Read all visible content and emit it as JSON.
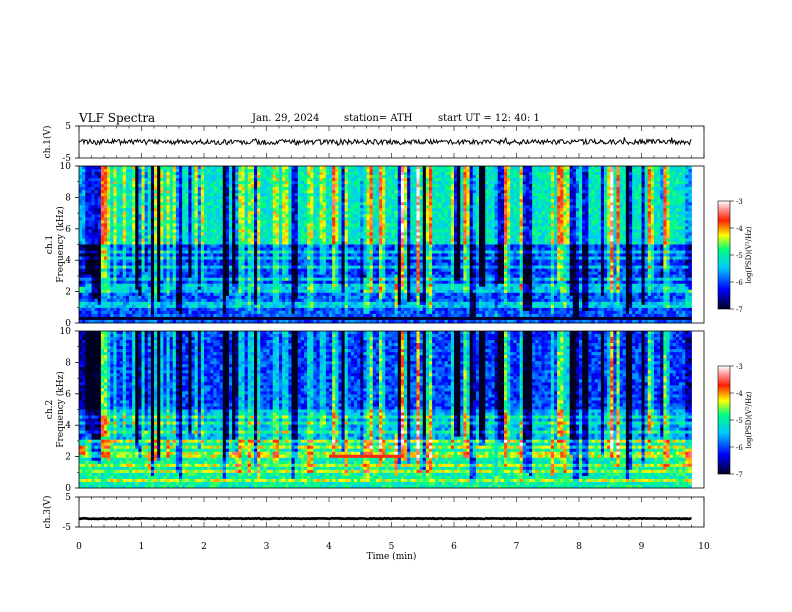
{
  "header": {
    "title": "VLF  Spectra",
    "date": "Jan. 29, 2024",
    "station": "station= ATH",
    "start": "start  UT  =    12: 40: 1"
  },
  "chart_data": [
    {
      "type": "line",
      "name": "ch1-waveform",
      "ylabel": "ch.1(V)",
      "ylim": [
        -5,
        5
      ],
      "yticks": [
        "5",
        "-5"
      ],
      "xlim": [
        0,
        10
      ],
      "series": [
        {
          "mean": 0,
          "amplitude": 1,
          "x_end": 9.8,
          "color": "#000000"
        }
      ]
    },
    {
      "type": "heatmap",
      "name": "ch1-spectrogram",
      "ylabel": "ch.1\nFrequency  (kHz)",
      "ylim": [
        0,
        10
      ],
      "yticks": [
        "0",
        "2",
        "4",
        "6",
        "8",
        "10"
      ],
      "xlim": [
        0,
        9.8
      ],
      "colorbar": {
        "label": "log(PSD)(V²/Hz)",
        "range": [
          -7,
          -3
        ],
        "ticks": [
          "-3",
          "-4",
          "-5",
          "-6",
          "-7"
        ]
      },
      "bands_khz": [
        0.3,
        1.0,
        1.3,
        2.0,
        2.3,
        2.8,
        3.5,
        4.2,
        4.6
      ],
      "gap_khz": [
        0.2,
        0.4
      ]
    },
    {
      "type": "heatmap",
      "name": "ch2-spectrogram",
      "ylabel": "ch.2\nFrequency  (kHz)",
      "ylim": [
        0,
        10
      ],
      "yticks": [
        "0",
        "2",
        "4",
        "6",
        "8",
        "10"
      ],
      "xlim": [
        0,
        9.8
      ],
      "colorbar": {
        "label": "log(PSD)(V²/Hz)",
        "range": [
          -7,
          -3
        ],
        "ticks": [
          "-3",
          "-4",
          "-5",
          "-6",
          "-7"
        ]
      },
      "bands_khz": [
        0.5,
        1.0,
        1.5,
        2.0,
        2.2,
        2.6,
        3.0,
        3.5,
        4.2,
        4.6
      ],
      "highlight": {
        "x": [
          4.0,
          5.2
        ],
        "khz": 2.05
      }
    },
    {
      "type": "line",
      "name": "ch3-waveform",
      "ylabel": "ch.3(V)",
      "ylim": [
        -5,
        5
      ],
      "yticks": [
        "5",
        "-5"
      ],
      "xlim": [
        0,
        10
      ],
      "xlabel": "Time  (min)",
      "xticks": [
        "0",
        "1",
        "2",
        "3",
        "4",
        "5",
        "6",
        "7",
        "8",
        "9",
        "10"
      ],
      "series": [
        {
          "mean": -2.2,
          "amplitude": 0.15,
          "x_end": 9.8,
          "color": "#000000"
        }
      ]
    }
  ]
}
